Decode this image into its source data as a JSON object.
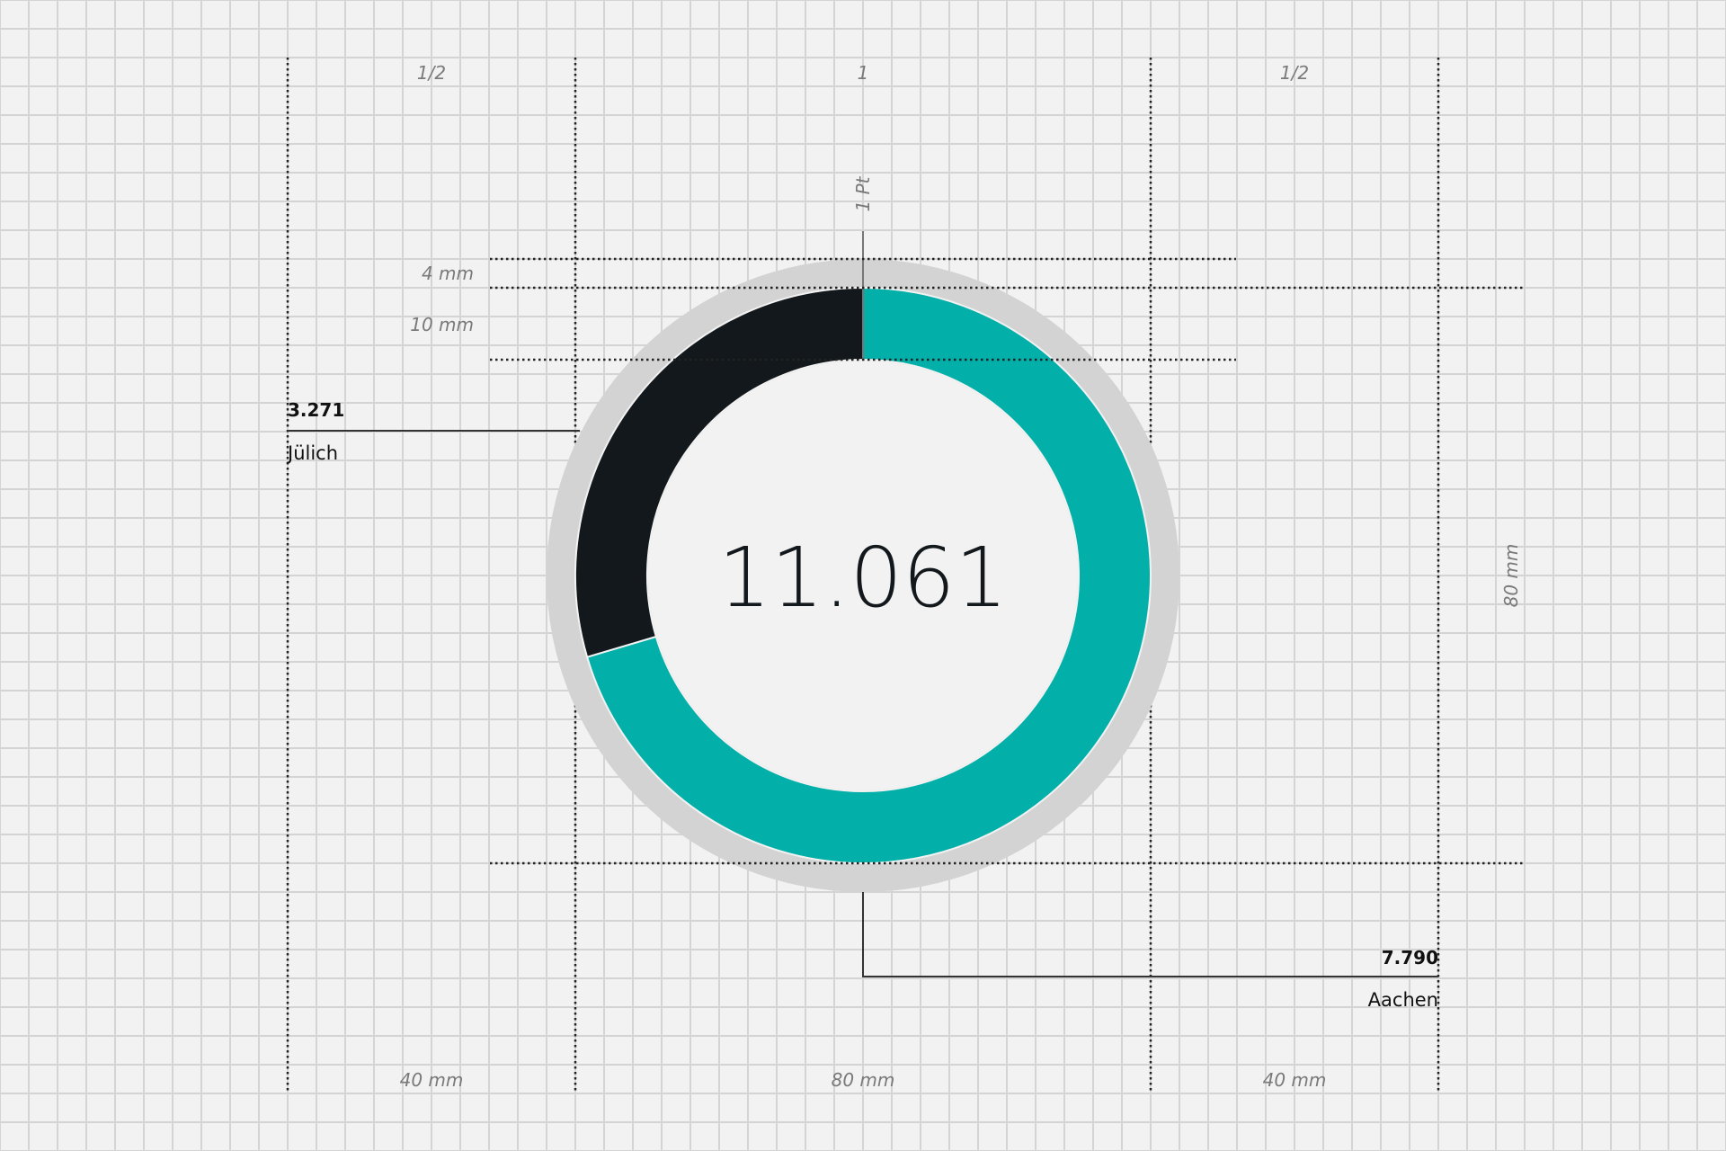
{
  "chart_data": {
    "type": "pie",
    "variant": "donut",
    "total_label": "11.061",
    "slices": [
      {
        "label": "Aachen",
        "value": 7790,
        "value_label": "7.790",
        "color": "#03b0a9"
      },
      {
        "label": "Jülich",
        "value": 3271,
        "value_label": "3.271",
        "color": "#12181b"
      }
    ],
    "halo_color": "#d3d3d3"
  },
  "annotations": {
    "col_left": "1/2",
    "col_center": "1",
    "col_right": "1/2",
    "width_left": "40 mm",
    "width_center": "80 mm",
    "width_right": "40 mm",
    "height": "80 mm",
    "halo": "4 mm",
    "ring": "10 mm",
    "stroke": "1 Pt"
  }
}
